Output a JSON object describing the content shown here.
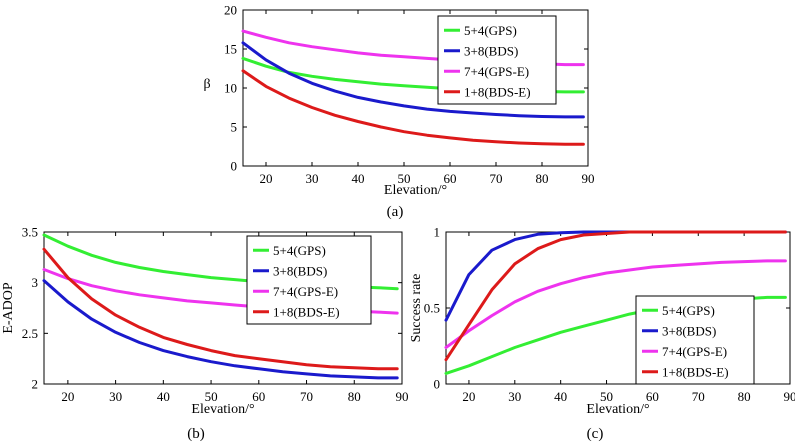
{
  "colors": {
    "GPS": "#33ee33",
    "BDS": "#1a1acc",
    "GPS-E": "#ee33ee",
    "BDS-E": "#dd1a1a"
  },
  "chart_data": [
    {
      "type": "line",
      "panel_label": "(a)",
      "xlabel": "Elevation/°",
      "ylabel": "β",
      "xlim": [
        15,
        90
      ],
      "ylim": [
        0,
        20
      ],
      "xticks": [
        "20",
        "30",
        "40",
        "50",
        "60",
        "70",
        "80",
        "90"
      ],
      "yticks": [
        "0",
        "5",
        "10",
        "15",
        "20"
      ],
      "legend_position": "top-right",
      "x": [
        15,
        20,
        25,
        30,
        35,
        40,
        45,
        50,
        55,
        60,
        65,
        70,
        75,
        80,
        85,
        89
      ],
      "series": [
        {
          "name": "5+4(GPS)",
          "color": "#33ee33",
          "values": [
            13.8,
            12.8,
            12.0,
            11.5,
            11.1,
            10.8,
            10.5,
            10.3,
            10.1,
            9.9,
            9.8,
            9.7,
            9.6,
            9.55,
            9.5,
            9.5
          ]
        },
        {
          "name": "3+8(BDS)",
          "color": "#1a1acc",
          "values": [
            15.8,
            13.6,
            11.9,
            10.6,
            9.6,
            8.8,
            8.2,
            7.7,
            7.3,
            7.0,
            6.8,
            6.6,
            6.45,
            6.35,
            6.3,
            6.3
          ]
        },
        {
          "name": "7+4(GPS-E)",
          "color": "#ee33ee",
          "values": [
            17.3,
            16.5,
            15.8,
            15.3,
            14.9,
            14.5,
            14.2,
            14.0,
            13.8,
            13.6,
            13.4,
            13.3,
            13.2,
            13.1,
            13.0,
            13.0
          ]
        },
        {
          "name": "1+8(BDS-E)",
          "color": "#dd1a1a",
          "values": [
            12.2,
            10.2,
            8.7,
            7.5,
            6.5,
            5.7,
            5.0,
            4.4,
            3.95,
            3.6,
            3.3,
            3.1,
            2.95,
            2.85,
            2.8,
            2.8
          ]
        }
      ]
    },
    {
      "type": "line",
      "panel_label": "(b)",
      "xlabel": "Elevation/°",
      "ylabel": "E-ADOP",
      "xlim": [
        15,
        90
      ],
      "ylim": [
        2,
        3.5
      ],
      "xticks": [
        "20",
        "30",
        "40",
        "50",
        "60",
        "70",
        "80",
        "90"
      ],
      "yticks": [
        "2",
        "2.5",
        "3",
        "3.5"
      ],
      "legend_position": "top-right",
      "x": [
        15,
        20,
        25,
        30,
        35,
        40,
        45,
        50,
        55,
        60,
        65,
        70,
        75,
        80,
        85,
        89
      ],
      "series": [
        {
          "name": "5+4(GPS)",
          "color": "#33ee33",
          "values": [
            3.47,
            3.36,
            3.27,
            3.2,
            3.15,
            3.11,
            3.08,
            3.05,
            3.03,
            3.01,
            2.99,
            2.98,
            2.97,
            2.96,
            2.95,
            2.94
          ]
        },
        {
          "name": "3+8(BDS)",
          "color": "#1a1acc",
          "values": [
            3.02,
            2.81,
            2.64,
            2.51,
            2.41,
            2.33,
            2.27,
            2.22,
            2.18,
            2.15,
            2.12,
            2.1,
            2.08,
            2.07,
            2.06,
            2.06
          ]
        },
        {
          "name": "7+4(GPS-E)",
          "color": "#ee33ee",
          "values": [
            3.13,
            3.04,
            2.97,
            2.92,
            2.88,
            2.85,
            2.82,
            2.8,
            2.78,
            2.76,
            2.75,
            2.74,
            2.73,
            2.72,
            2.71,
            2.7
          ]
        },
        {
          "name": "1+8(BDS-E)",
          "color": "#dd1a1a",
          "values": [
            3.33,
            3.05,
            2.84,
            2.68,
            2.56,
            2.46,
            2.39,
            2.33,
            2.28,
            2.25,
            2.22,
            2.19,
            2.17,
            2.16,
            2.15,
            2.15
          ]
        }
      ]
    },
    {
      "type": "line",
      "panel_label": "(c)",
      "xlabel": "Elevation/°",
      "ylabel": "Success rate",
      "xlim": [
        15,
        90
      ],
      "ylim": [
        0,
        1
      ],
      "xticks": [
        "20",
        "30",
        "40",
        "50",
        "60",
        "70",
        "80",
        "90"
      ],
      "yticks": [
        "0",
        "0.5",
        "1"
      ],
      "legend_position": "bottom-right",
      "x": [
        15,
        20,
        25,
        30,
        35,
        40,
        45,
        50,
        55,
        60,
        65,
        70,
        75,
        80,
        85,
        89
      ],
      "series": [
        {
          "name": "5+4(GPS)",
          "color": "#33ee33",
          "values": [
            0.07,
            0.12,
            0.18,
            0.24,
            0.29,
            0.34,
            0.38,
            0.42,
            0.46,
            0.49,
            0.51,
            0.53,
            0.55,
            0.56,
            0.57,
            0.57
          ]
        },
        {
          "name": "3+8(BDS)",
          "color": "#1a1acc",
          "values": [
            0.42,
            0.72,
            0.88,
            0.95,
            0.985,
            0.995,
            1.0,
            1.0,
            1.0,
            1.0,
            1.0,
            1.0,
            1.0,
            1.0,
            1.0,
            1.0
          ]
        },
        {
          "name": "7+4(GPS-E)",
          "color": "#ee33ee",
          "values": [
            0.24,
            0.35,
            0.45,
            0.54,
            0.61,
            0.66,
            0.7,
            0.73,
            0.75,
            0.77,
            0.78,
            0.79,
            0.8,
            0.805,
            0.81,
            0.81
          ]
        },
        {
          "name": "1+8(BDS-E)",
          "color": "#dd1a1a",
          "values": [
            0.16,
            0.39,
            0.62,
            0.79,
            0.89,
            0.95,
            0.98,
            0.99,
            1.0,
            1.0,
            1.0,
            1.0,
            1.0,
            1.0,
            1.0,
            1.0
          ]
        }
      ]
    }
  ]
}
